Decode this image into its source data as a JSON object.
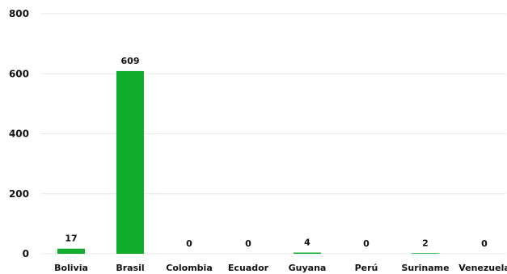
{
  "chart_data": {
    "type": "bar",
    "categories": [
      "Bolivia",
      "Brasil",
      "Colombia",
      "Ecuador",
      "Guyana",
      "Perú",
      "Suriname",
      "Venezuela"
    ],
    "values": [
      17,
      609,
      0,
      0,
      4,
      0,
      2,
      0
    ],
    "data_labels": [
      "17",
      "609",
      "0",
      "0",
      "4",
      "0",
      "2",
      "0"
    ],
    "y_ticks": [
      0,
      200,
      400,
      600,
      800
    ],
    "ylim": [
      0,
      800
    ],
    "grid": true,
    "legend": "none",
    "bar_color": "#12ac2e",
    "grid_color": "#e8e8e8"
  }
}
